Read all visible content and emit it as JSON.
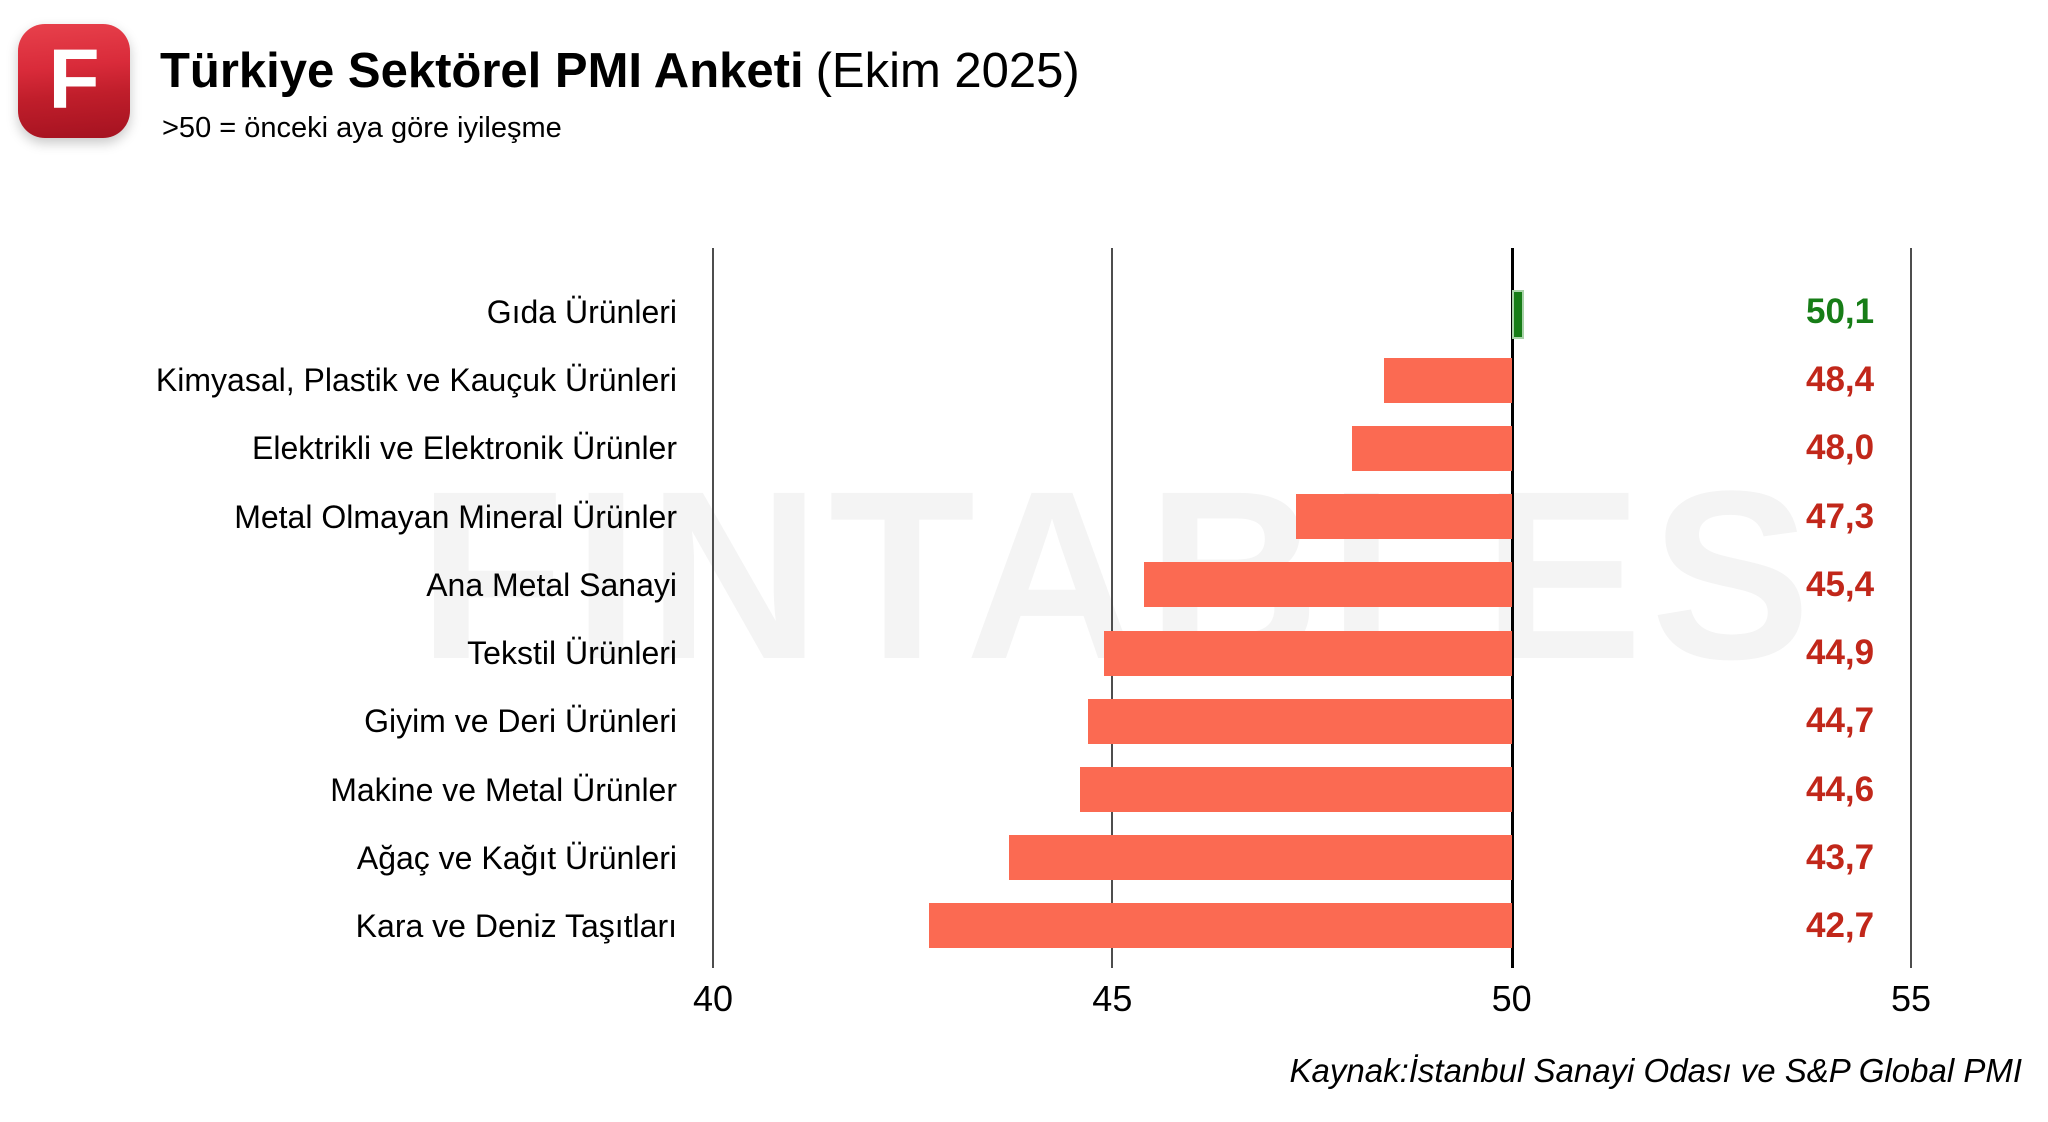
{
  "header": {
    "logo_letter": "F",
    "title_bold": "Türkiye Sektörel PMI Anketi",
    "title_regular": "(Ekim 2025)",
    "subtitle": ">50 = önceki aya göre iyileşme"
  },
  "watermark": "FINTABLES",
  "source": "Kaynak:İstanbul Sanayi Odası ve S&P Global PMI",
  "chart_data": {
    "type": "bar",
    "orientation": "horizontal",
    "title": "Türkiye Sektörel PMI Anketi (Ekim 2025)",
    "subtitle": ">50 = önceki aya göre iyileşme",
    "categories": [
      "Gıda Ürünleri",
      "Kimyasal, Plastik ve Kauçuk Ürünleri",
      "Elektrikli ve Elektronik Ürünler",
      "Metal Olmayan Mineral Ürünler",
      "Ana Metal Sanayi",
      "Tekstil Ürünleri",
      "Giyim ve Deri Ürünleri",
      "Makine ve Metal Ürünler",
      "Ağaç ve Kağıt Ürünleri",
      "Kara ve Deniz Taşıtları"
    ],
    "values": [
      50.1,
      48.4,
      48.0,
      47.3,
      45.4,
      44.9,
      44.7,
      44.6,
      43.7,
      42.7
    ],
    "value_labels": [
      "50,1",
      "48,4",
      "48,0",
      "47,3",
      "45,4",
      "44,9",
      "44,7",
      "44,6",
      "43,7",
      "42,7"
    ],
    "baseline": 50,
    "xlim": [
      40,
      55
    ],
    "xticks": [
      40,
      45,
      50,
      55
    ],
    "grid": "vertical",
    "legend_position": "none",
    "colors": {
      "positive_bar": "#177d17",
      "positive_bar_border": "#a9d3a9",
      "negative_bar": "#fb6a52",
      "positive_text": "#177d17",
      "negative_text": "#c1271a"
    }
  }
}
